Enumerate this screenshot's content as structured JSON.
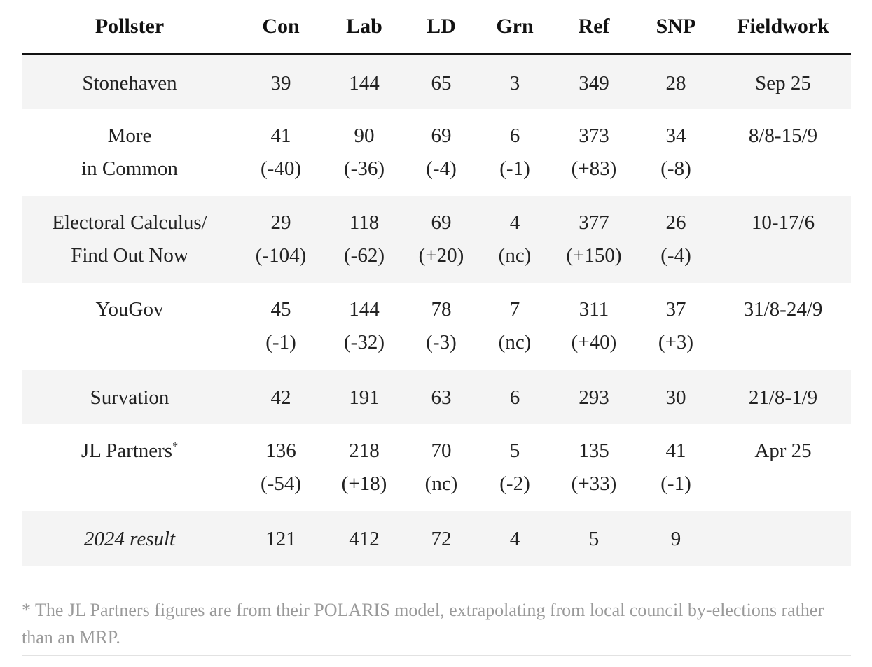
{
  "table": {
    "headers": [
      "Pollster",
      "Con",
      "Lab",
      "LD",
      "Grn",
      "Ref",
      "SNP",
      "Fieldwork"
    ],
    "rows": [
      {
        "pollster_lines": [
          "Stonehaven"
        ],
        "con": [
          "39"
        ],
        "lab": [
          "144"
        ],
        "ld": [
          "65"
        ],
        "grn": [
          "3"
        ],
        "ref": [
          "349"
        ],
        "snp": [
          "28"
        ],
        "fieldwork": "Sep 25"
      },
      {
        "pollster_lines": [
          "More",
          "in Common"
        ],
        "con": [
          "41",
          "(-40)"
        ],
        "lab": [
          "90",
          "(-36)"
        ],
        "ld": [
          "69",
          "(-4)"
        ],
        "grn": [
          "6",
          "(-1)"
        ],
        "ref": [
          "373",
          "(+83)"
        ],
        "snp": [
          "34",
          "(-8)"
        ],
        "fieldwork": "8/8-15/9"
      },
      {
        "pollster_lines": [
          "Electoral Calculus/",
          "Find Out Now"
        ],
        "con": [
          "29",
          "(-104)"
        ],
        "lab": [
          "118",
          "(-62)"
        ],
        "ld": [
          "69",
          "(+20)"
        ],
        "grn": [
          "4",
          "(nc)"
        ],
        "ref": [
          "377",
          "(+150)"
        ],
        "snp": [
          "26",
          "(-4)"
        ],
        "fieldwork": "10-17/6"
      },
      {
        "pollster_lines": [
          "YouGov"
        ],
        "con": [
          "45",
          "(-1)"
        ],
        "lab": [
          "144",
          "(-32)"
        ],
        "ld": [
          "78",
          "(-3)"
        ],
        "grn": [
          "7",
          "(nc)"
        ],
        "ref": [
          "311",
          "(+40)"
        ],
        "snp": [
          "37",
          "(+3)"
        ],
        "fieldwork": "31/8-24/9"
      },
      {
        "pollster_lines": [
          "Survation"
        ],
        "con": [
          "42"
        ],
        "lab": [
          "191"
        ],
        "ld": [
          "63"
        ],
        "grn": [
          "6"
        ],
        "ref": [
          "293"
        ],
        "snp": [
          "30"
        ],
        "fieldwork": "21/8-1/9"
      },
      {
        "pollster_lines": [
          "JL Partners"
        ],
        "pollster_mark": "*",
        "con": [
          "136",
          "(-54)"
        ],
        "lab": [
          "218",
          "(+18)"
        ],
        "ld": [
          "70",
          "(nc)"
        ],
        "grn": [
          "5",
          "(-2)"
        ],
        "ref": [
          "135",
          "(+33)"
        ],
        "snp": [
          "41",
          "(-1)"
        ],
        "fieldwork": "Apr 25"
      },
      {
        "pollster_lines": [
          "2024 result"
        ],
        "is_result": true,
        "con": [
          "121"
        ],
        "lab": [
          "412"
        ],
        "ld": [
          "72"
        ],
        "grn": [
          "4"
        ],
        "ref": [
          "5"
        ],
        "snp": [
          "9"
        ],
        "fieldwork": ""
      }
    ]
  },
  "footnote": "* The JL Partners figures are from their POLARIS model, extrapolating from local council by-elections rather than an MRP."
}
